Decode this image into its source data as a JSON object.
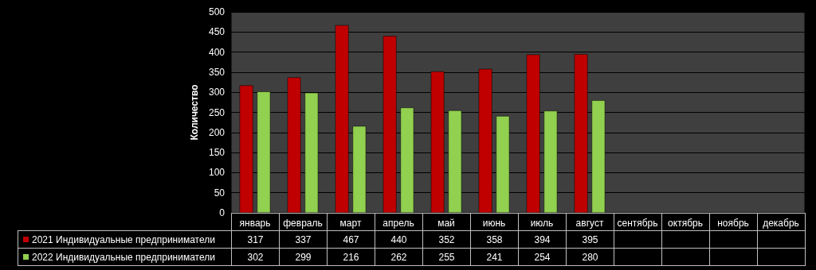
{
  "chart_data": {
    "type": "bar",
    "ylabel": "Количество",
    "categories": [
      "январь",
      "февраль",
      "март",
      "апрель",
      "май",
      "июнь",
      "июль",
      "август",
      "сентябрь",
      "октябрь",
      "ноябрь",
      "декабрь"
    ],
    "series": [
      {
        "name": "2021 Индивидуальные предприниматели",
        "color": "#c00000",
        "values": [
          317,
          337,
          467,
          440,
          352,
          358,
          394,
          395,
          null,
          null,
          null,
          null
        ]
      },
      {
        "name": "2022 Индивидуальные предприниматели",
        "color": "#92d050",
        "values": [
          302,
          299,
          216,
          262,
          255,
          241,
          254,
          280,
          null,
          null,
          null,
          null
        ]
      }
    ],
    "ylim": [
      0,
      500
    ],
    "yticks": [
      0,
      50,
      100,
      150,
      200,
      250,
      300,
      350,
      400,
      450,
      500
    ],
    "grid": "y",
    "legend": "bottom left",
    "data_labels": true
  }
}
